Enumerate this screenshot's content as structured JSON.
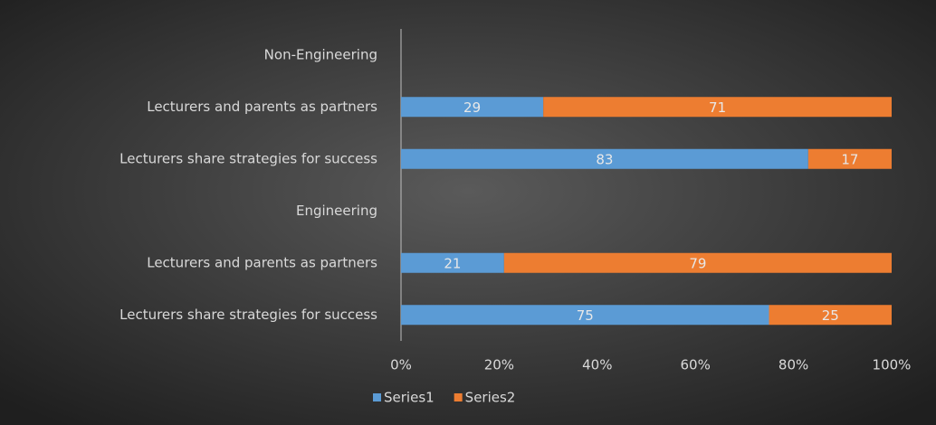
{
  "chart_data": {
    "type": "stacked_bar_horizontal",
    "categories": [
      "Non-Engineering",
      "Lecturers and parents as partners",
      "Lecturers share strategies for success",
      "Engineering",
      "Lecturers and parents as partners",
      "Lecturers share strategies for success"
    ],
    "series": [
      {
        "name": "Series1",
        "color": "#5b9bd5",
        "values": [
          null,
          29,
          83,
          null,
          21,
          75
        ]
      },
      {
        "name": "Series2",
        "color": "#ed7d31",
        "values": [
          null,
          71,
          17,
          null,
          79,
          25
        ]
      }
    ],
    "xlim": [
      0,
      100
    ],
    "xticks": [
      {
        "value": 0,
        "label": "0%"
      },
      {
        "value": 20,
        "label": "20%"
      },
      {
        "value": 40,
        "label": "40%"
      },
      {
        "value": 60,
        "label": "60%"
      },
      {
        "value": 80,
        "label": "80%"
      },
      {
        "value": 100,
        "label": "100%"
      }
    ],
    "grid": false,
    "legend": "bottom"
  }
}
